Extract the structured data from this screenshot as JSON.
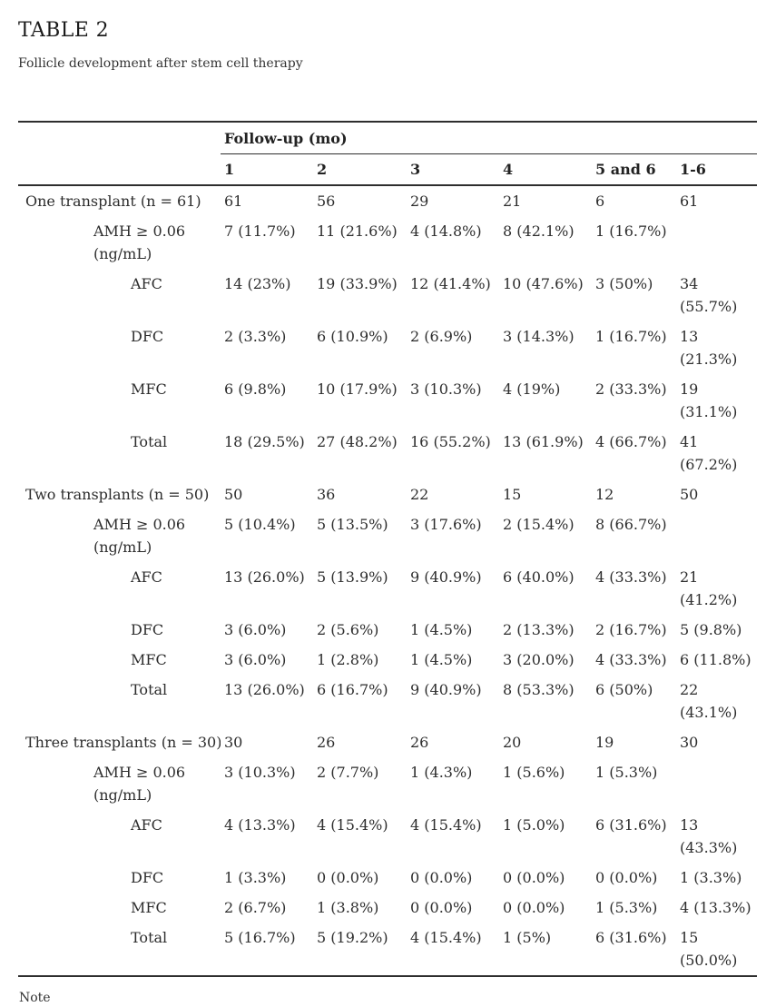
{
  "page": {
    "title": "TABLE 2",
    "subtitle": "Follicle development after stem cell therapy",
    "note": "Note"
  },
  "table": {
    "span_header": "Follow-up (mo)",
    "columns": [
      "1",
      "2",
      "3",
      "4",
      "5 and 6",
      "1-6"
    ],
    "groups": [
      {
        "label": "One transplant (n = 61)",
        "follow_up_counts": [
          "61",
          "56",
          "29",
          "21",
          "6",
          "61"
        ],
        "rows": [
          {
            "label": "AMH ≥ 0.06 (ng/mL)",
            "indent": 1,
            "values": [
              "7 (11.7%)",
              "11 (21.6%)",
              "4 (14.8%)",
              "8 (42.1%)",
              "1 (16.7%)",
              ""
            ]
          },
          {
            "label": "AFC",
            "indent": 2,
            "values": [
              "14 (23%)",
              "19 (33.9%)",
              "12 (41.4%)",
              "10 (47.6%)",
              "3 (50%)",
              "34 (55.7%)"
            ]
          },
          {
            "label": "DFC",
            "indent": 2,
            "values": [
              "2 (3.3%)",
              "6 (10.9%)",
              "2 (6.9%)",
              "3 (14.3%)",
              "1 (16.7%)",
              "13 (21.3%)"
            ]
          },
          {
            "label": "MFC",
            "indent": 2,
            "values": [
              "6 (9.8%)",
              "10 (17.9%)",
              "3 (10.3%)",
              "4 (19%)",
              "2 (33.3%)",
              "19 (31.1%)"
            ]
          },
          {
            "label": "Total",
            "indent": 2,
            "values": [
              "18 (29.5%)",
              "27 (48.2%)",
              "16 (55.2%)",
              "13 (61.9%)",
              "4 (66.7%)",
              "41 (67.2%)"
            ]
          }
        ]
      },
      {
        "label": "Two transplants (n = 50)",
        "follow_up_counts": [
          "50",
          "36",
          "22",
          "15",
          "12",
          "50"
        ],
        "rows": [
          {
            "label": "AMH ≥ 0.06 (ng/mL)",
            "indent": 1,
            "values": [
              "5 (10.4%)",
              "5 (13.5%)",
              "3 (17.6%)",
              "2 (15.4%)",
              "8 (66.7%)",
              ""
            ]
          },
          {
            "label": "AFC",
            "indent": 2,
            "values": [
              "13 (26.0%)",
              "5 (13.9%)",
              "9 (40.9%)",
              "6 (40.0%)",
              "4 (33.3%)",
              "21 (41.2%)"
            ]
          },
          {
            "label": "DFC",
            "indent": 2,
            "values": [
              "3 (6.0%)",
              "2 (5.6%)",
              "1 (4.5%)",
              "2 (13.3%)",
              "2 (16.7%)",
              "5 (9.8%)"
            ]
          },
          {
            "label": "MFC",
            "indent": 2,
            "values": [
              "3 (6.0%)",
              "1 (2.8%)",
              "1 (4.5%)",
              "3 (20.0%)",
              "4 (33.3%)",
              "6 (11.8%)"
            ]
          },
          {
            "label": "Total",
            "indent": 2,
            "values": [
              "13 (26.0%)",
              "6 (16.7%)",
              "9 (40.9%)",
              "8 (53.3%)",
              "6 (50%)",
              "22 (43.1%)"
            ]
          }
        ]
      },
      {
        "label": "Three transplants (n = 30)",
        "follow_up_counts": [
          "30",
          "26",
          "26",
          "20",
          "19",
          "30"
        ],
        "rows": [
          {
            "label": "AMH ≥ 0.06 (ng/mL)",
            "indent": 1,
            "values": [
              "3 (10.3%)",
              "2 (7.7%)",
              "1 (4.3%)",
              "1 (5.6%)",
              "1 (5.3%)",
              ""
            ]
          },
          {
            "label": "AFC",
            "indent": 2,
            "values": [
              "4 (13.3%)",
              "4 (15.4%)",
              "4 (15.4%)",
              "1 (5.0%)",
              "6 (31.6%)",
              "13 (43.3%)"
            ]
          },
          {
            "label": "DFC",
            "indent": 2,
            "values": [
              "1 (3.3%)",
              "0 (0.0%)",
              "0 (0.0%)",
              "0 (0.0%)",
              "0 (0.0%)",
              "1 (3.3%)"
            ]
          },
          {
            "label": "MFC",
            "indent": 2,
            "values": [
              "2 (6.7%)",
              "1 (3.8%)",
              "0 (0.0%)",
              "0 (0.0%)",
              "1 (5.3%)",
              "4 (13.3%)"
            ]
          },
          {
            "label": "Total",
            "indent": 2,
            "values": [
              "5 (16.7%)",
              "5 (19.2%)",
              "4 (15.4%)",
              "1 (5%)",
              "6 (31.6%)",
              "15 (50.0%)"
            ]
          }
        ]
      }
    ]
  }
}
